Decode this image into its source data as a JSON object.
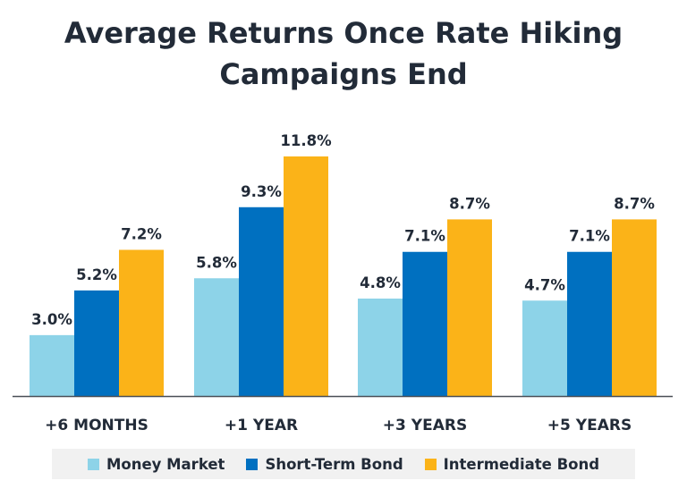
{
  "chart_data": {
    "type": "bar",
    "title_lines": [
      "Average Returns Once Rate Hiking",
      "Campaigns End"
    ],
    "categories": [
      "+6 MONTHS",
      "+1 YEAR",
      "+3 YEARS",
      "+5 YEARS"
    ],
    "series": [
      {
        "name": "Money Market",
        "color": "#8dd3e8",
        "values": [
          3.0,
          5.8,
          4.8,
          4.7
        ],
        "labels": [
          "3.0%",
          "5.8%",
          "4.8%",
          "4.7%"
        ]
      },
      {
        "name": "Short-Term Bond",
        "color": "#0070c0",
        "values": [
          5.2,
          9.3,
          7.1,
          7.1
        ],
        "labels": [
          "5.2%",
          "9.3%",
          "7.1%",
          "7.1%"
        ]
      },
      {
        "name": "Intermediate Bond",
        "color": "#fbb318",
        "values": [
          7.2,
          11.8,
          8.7,
          8.7
        ],
        "labels": [
          "7.2%",
          "11.8%",
          "8.7%",
          "8.7%"
        ]
      }
    ],
    "ylim": [
      0,
      11.8
    ],
    "grid": false,
    "legend_position": "bottom"
  }
}
